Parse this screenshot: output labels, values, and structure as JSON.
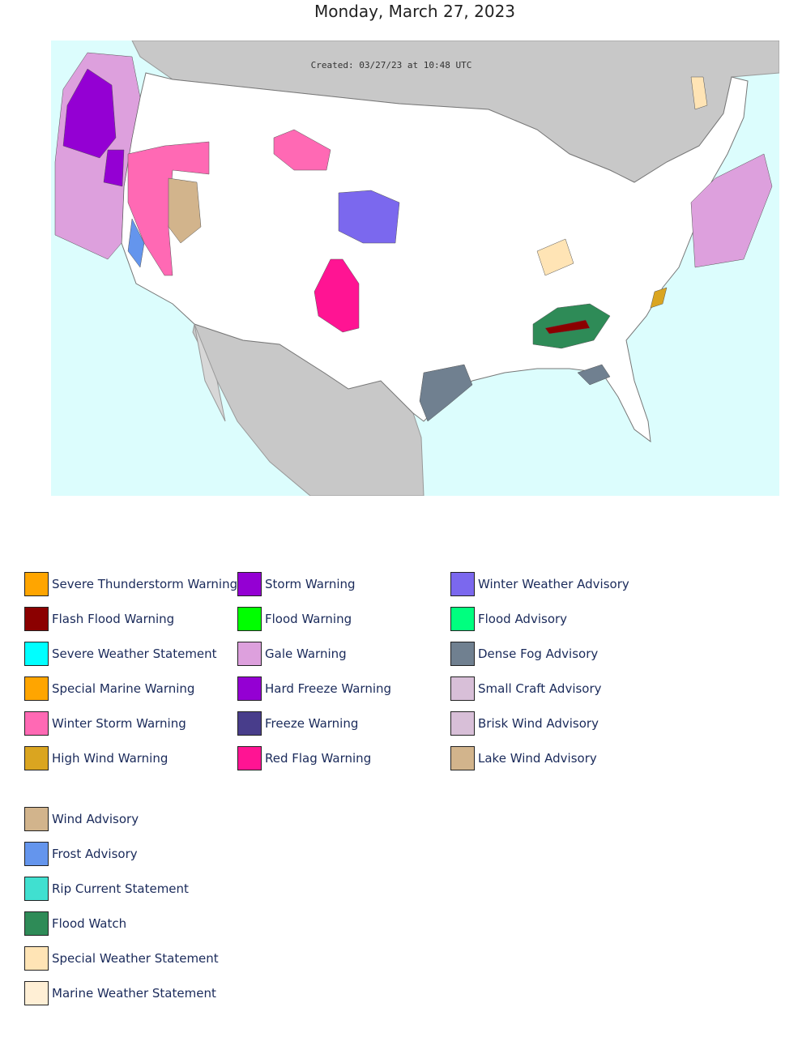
{
  "title": "Monday, March 27, 2023",
  "map": {
    "created": "Created: 03/27/23 at 10:48 UTC"
  },
  "legend": [
    {
      "label": "Severe Thunderstorm Warning",
      "color": "#FFA500"
    },
    {
      "label": "Flash Flood Warning",
      "color": "#8B0000"
    },
    {
      "label": "Severe Weather Statement",
      "color": "#00FFFF"
    },
    {
      "label": "Special Marine Warning",
      "color": "#FFA500"
    },
    {
      "label": "Winter Storm Warning",
      "color": "#FF69B4"
    },
    {
      "label": "High Wind Warning",
      "color": "#DAA520"
    },
    {
      "label": "Storm Warning",
      "color": "#9400D3"
    },
    {
      "label": "Flood Warning",
      "color": "#00FF00"
    },
    {
      "label": "Gale Warning",
      "color": "#DDA0DD"
    },
    {
      "label": "Hard Freeze Warning",
      "color": "#9400D3"
    },
    {
      "label": "Freeze Warning",
      "color": "#483D8B"
    },
    {
      "label": "Red Flag Warning",
      "color": "#FF1493"
    },
    {
      "label": "Winter Weather Advisory",
      "color": "#7B68EE"
    },
    {
      "label": "Flood Advisory",
      "color": "#00FF7F"
    },
    {
      "label": "Dense Fog Advisory",
      "color": "#708090"
    },
    {
      "label": "Small Craft Advisory",
      "color": "#D8BFD8"
    },
    {
      "label": "Brisk Wind Advisory",
      "color": "#D8BFD8"
    },
    {
      "label": "Lake Wind Advisory",
      "color": "#D2B48C"
    },
    {
      "label": "Wind Advisory",
      "color": "#D2B48C"
    },
    {
      "label": "Frost Advisory",
      "color": "#6495ED"
    },
    {
      "label": "Rip Current Statement",
      "color": "#40E0D0"
    },
    {
      "label": "Flood Watch",
      "color": "#2E8B57"
    },
    {
      "label": "Special Weather Statement",
      "color": "#FFE4B5"
    },
    {
      "label": "Marine Weather Statement",
      "color": "#FFEFD5"
    }
  ]
}
